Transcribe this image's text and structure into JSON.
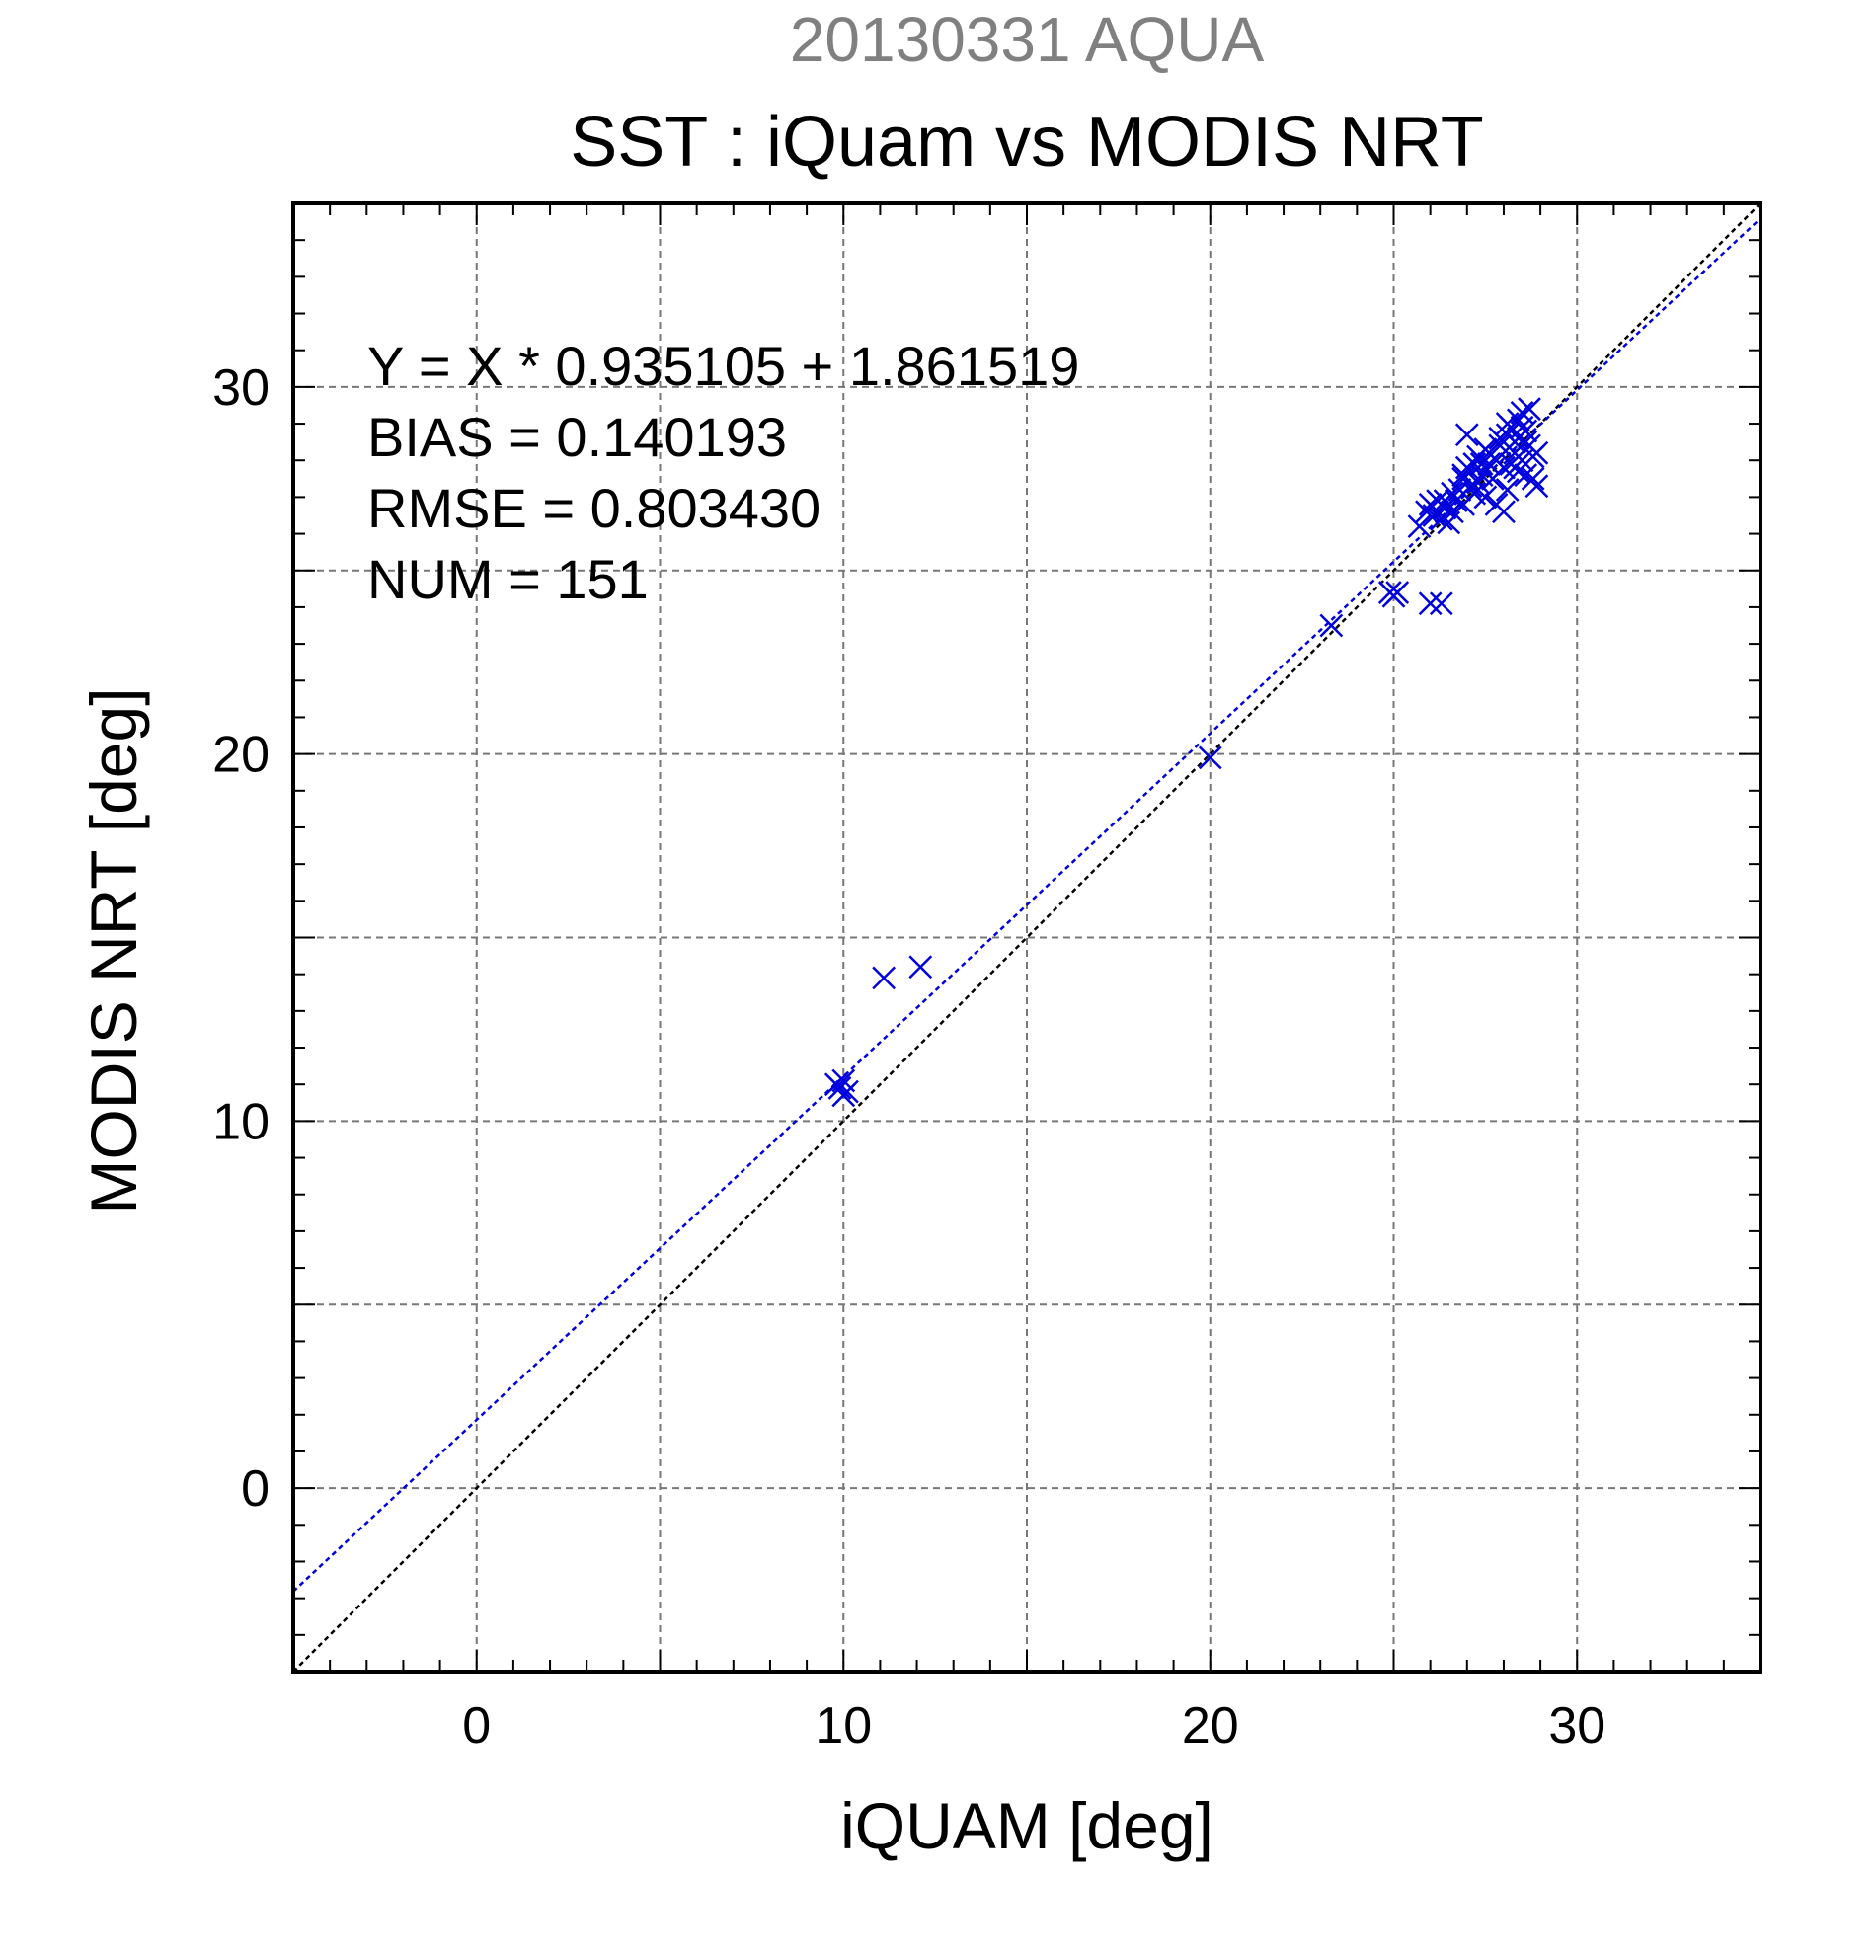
{
  "chart_data": {
    "type": "scatter",
    "title": "SST : iQuam vs MODIS NRT",
    "supertitle": "20130331 AQUA",
    "xlabel": "iQUAM [deg]",
    "ylabel": "MODIS NRT [deg]",
    "xlim": [
      -5,
      35
    ],
    "ylim": [
      -5,
      35
    ],
    "xticks": [
      0,
      10,
      20,
      30
    ],
    "yticks": [
      0,
      10,
      20,
      30
    ],
    "grid": true,
    "annotations": [
      "Y = X * 0.935105 + 1.861519",
      "BIAS = 0.140193",
      "RMSE = 0.803430",
      "NUM = 151"
    ],
    "colors": {
      "points": "#0000dd",
      "fit_line": "#0000dd",
      "identity_line": "#000000",
      "grid": "#777777",
      "supertitle": "#808080"
    },
    "fit": {
      "slope": 0.935105,
      "intercept": 1.861519
    },
    "identity": {
      "slope": 1,
      "intercept": 0
    },
    "series": [
      {
        "marker": "x",
        "points": [
          [
            9.9,
            10.9
          ],
          [
            10.0,
            11.1
          ],
          [
            10.1,
            10.8
          ],
          [
            9.8,
            11.0
          ],
          [
            10.0,
            10.7
          ],
          [
            11.1,
            13.9
          ],
          [
            12.1,
            14.2
          ],
          [
            20.0,
            19.9
          ],
          [
            23.3,
            23.5
          ],
          [
            24.9,
            24.4
          ],
          [
            25.0,
            24.3
          ],
          [
            25.1,
            24.4
          ],
          [
            26.0,
            24.1
          ],
          [
            26.3,
            24.1
          ],
          [
            25.7,
            26.2
          ],
          [
            25.9,
            26.6
          ],
          [
            26.0,
            26.8
          ],
          [
            26.1,
            26.5
          ],
          [
            26.2,
            26.9
          ],
          [
            26.3,
            26.4
          ],
          [
            26.4,
            26.7
          ],
          [
            26.5,
            26.3
          ],
          [
            26.6,
            26.6
          ],
          [
            26.7,
            26.9
          ],
          [
            26.8,
            27.2
          ],
          [
            26.9,
            27.5
          ],
          [
            27.0,
            27.8
          ],
          [
            27.1,
            27.3
          ],
          [
            27.0,
            28.7
          ],
          [
            27.2,
            27.9
          ],
          [
            27.3,
            28.1
          ],
          [
            27.4,
            27.6
          ],
          [
            27.5,
            28.3
          ],
          [
            27.6,
            27.9
          ],
          [
            27.7,
            27.5
          ],
          [
            27.8,
            28.0
          ],
          [
            27.9,
            28.4
          ],
          [
            28.0,
            27.8
          ],
          [
            28.0,
            26.6
          ],
          [
            27.8,
            26.8
          ],
          [
            28.1,
            27.2
          ],
          [
            28.1,
            28.7
          ],
          [
            28.2,
            28.9
          ],
          [
            28.3,
            28.2
          ],
          [
            28.3,
            27.8
          ],
          [
            28.4,
            29.1
          ],
          [
            28.4,
            28.6
          ],
          [
            28.5,
            28.0
          ],
          [
            28.5,
            29.3
          ],
          [
            28.6,
            28.8
          ],
          [
            28.6,
            27.6
          ],
          [
            28.7,
            28.4
          ],
          [
            28.7,
            29.4
          ],
          [
            28.8,
            28.1
          ],
          [
            28.8,
            27.5
          ],
          [
            28.2,
            27.9
          ],
          [
            28.4,
            27.7
          ],
          [
            28.6,
            28.5
          ],
          [
            27.5,
            27.0
          ],
          [
            27.2,
            27.1
          ],
          [
            26.9,
            26.8
          ],
          [
            26.6,
            27.1
          ],
          [
            26.4,
            26.9
          ],
          [
            26.2,
            26.6
          ],
          [
            26.9,
            27.6
          ],
          [
            27.3,
            27.4
          ],
          [
            27.9,
            28.6
          ],
          [
            28.1,
            29.0
          ],
          [
            28.5,
            28.9
          ],
          [
            28.9,
            28.2
          ],
          [
            28.9,
            27.3
          ],
          [
            28.3,
            28.5
          ],
          [
            27.6,
            28.2
          ],
          [
            27.4,
            27.9
          ]
        ]
      }
    ]
  }
}
